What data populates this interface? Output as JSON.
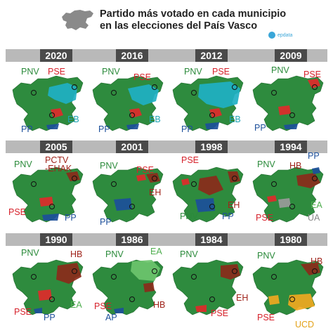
{
  "title": {
    "line1": "Partido más votado en cada municipio",
    "line2": "en las elecciones del País Vasco"
  },
  "logo": {
    "text": "epdata"
  },
  "colors": {
    "PNV": "#2e8b3e",
    "PSE": "#e02a2a",
    "EB": "#1fb0c3",
    "PP": "#1c4f9a",
    "HB": "#8b2a1a",
    "EA": "#6cc46c",
    "UA": "#9a9a9a",
    "UCD": "#f0a820",
    "AP": "#1c4f9a",
    "PCTV-EHAK": "#8b2a1a",
    "EH": "#8b2a1a",
    "background": "#ffffff",
    "band": "#b9b9b9",
    "year_box": "#4a4a4a"
  },
  "panels": [
    {
      "year": "2020",
      "labels": {
        "l1": "PNV",
        "l2": "PSE",
        "l3": "EB",
        "l4": "PP"
      }
    },
    {
      "year": "2016",
      "labels": {
        "l1": "PNV",
        "l2": "PSE",
        "l3": "EB",
        "l4": "PP"
      }
    },
    {
      "year": "2012",
      "labels": {
        "l1": "PNV",
        "l2": "PSE",
        "l3": "EB",
        "l4": "PP"
      }
    },
    {
      "year": "2009",
      "labels": {
        "l1": "PNV",
        "l2": "PSE",
        "l3": "PP"
      }
    },
    {
      "year": "2005",
      "labels": {
        "l1": "PNV",
        "l2": "PCTV",
        "l3": "-EHAK",
        "l4": "PSE",
        "l5": "PP"
      }
    },
    {
      "year": "2001",
      "labels": {
        "l1": "PNV",
        "l2": "PSE",
        "l3": "EH",
        "l4": "PP"
      }
    },
    {
      "year": "1998",
      "labels": {
        "l1": "PSE",
        "l2": "EH",
        "l3": "PNV",
        "l4": "PP"
      }
    },
    {
      "year": "1994",
      "labels": {
        "l1": "PNV",
        "l2": "HB",
        "l3": "PP",
        "l4": "EA",
        "l5": "PSE",
        "l6": "UA"
      }
    },
    {
      "year": "1990",
      "labels": {
        "l1": "PNV",
        "l2": "HB",
        "l3": "EA",
        "l4": "PSE",
        "l5": "PP"
      }
    },
    {
      "year": "1986",
      "labels": {
        "l1": "PNV",
        "l2": "EA",
        "l3": "PSE",
        "l4": "AP",
        "l5": "HB"
      }
    },
    {
      "year": "1984",
      "labels": {
        "l1": "PNV",
        "l2": "EH",
        "l3": "PSE"
      }
    },
    {
      "year": "1980",
      "labels": {
        "l1": "PNV",
        "l2": "HB",
        "l3": "PSE",
        "l4": "UCD"
      }
    }
  ]
}
